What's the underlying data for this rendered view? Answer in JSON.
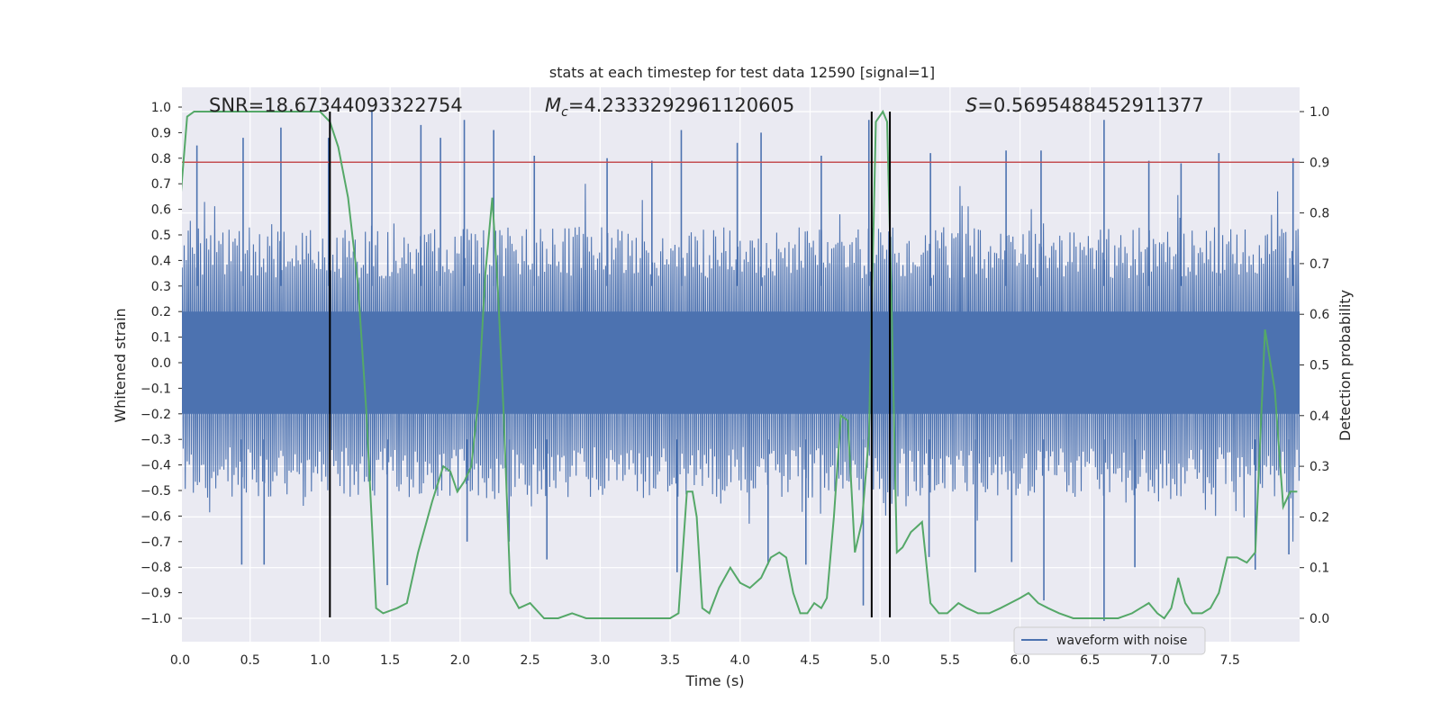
{
  "chart_data": {
    "type": "line",
    "title": "stats at each timestep for test data 12590 [signal=1]",
    "xlabel": "Time (s)",
    "ylabel": "Whitened strain",
    "y2label": "Detection probability",
    "xlim": [
      0.0,
      8.0
    ],
    "ylim": [
      -1.1,
      1.1
    ],
    "y2lim": [
      -0.05,
      1.05
    ],
    "x_ticks": [
      "0.0",
      "0.5",
      "1.0",
      "1.5",
      "2.0",
      "2.5",
      "3.0",
      "3.5",
      "4.0",
      "4.5",
      "5.0",
      "5.5",
      "6.0",
      "6.5",
      "7.0",
      "7.5"
    ],
    "y_ticks": [
      "1.0",
      "0.9",
      "0.8",
      "0.7",
      "0.6",
      "0.5",
      "0.4",
      "0.3",
      "0.2",
      "0.1",
      "0.0",
      "−0.1",
      "−0.2",
      "−0.3",
      "−0.4",
      "−0.5",
      "−0.6",
      "−0.7",
      "−0.8",
      "−0.9",
      "−1.0"
    ],
    "y2_ticks": [
      "1.0",
      "0.9",
      "0.8",
      "0.7",
      "0.6",
      "0.5",
      "0.4",
      "0.3",
      "0.2",
      "0.1",
      "0.0"
    ],
    "grid": true,
    "legend_position": "lower-right",
    "annotations": {
      "snr": "SNR=18.67344093322754",
      "mc_symbol": "M",
      "mc_sub": "c",
      "mc_value": "=4.2333292961120605",
      "s_symbol": "S",
      "s_value": "=0.5695488452911377"
    },
    "series": [
      {
        "name": "waveform with noise",
        "kind": "noise-envelope",
        "color": "#4c72b0",
        "core_amplitude": 0.2,
        "peak_times": [
          0.12,
          0.45,
          0.72,
          1.06,
          1.37,
          1.72,
          1.86,
          2.03,
          2.24,
          2.53,
          3.05,
          3.37,
          3.58,
          3.98,
          4.15,
          4.58,
          4.92,
          5.07,
          5.36,
          5.9,
          6.15,
          6.6,
          6.92,
          7.15,
          7.42,
          7.95
        ],
        "peak_values": [
          0.85,
          0.88,
          0.92,
          0.88,
          0.99,
          0.93,
          0.88,
          0.95,
          0.91,
          0.81,
          0.8,
          0.79,
          0.91,
          0.86,
          0.9,
          0.81,
          0.95,
          0.79,
          0.82,
          0.83,
          0.83,
          0.95,
          0.79,
          0.78,
          0.82,
          0.8
        ],
        "trough_times": [
          0.0,
          0.44,
          0.6,
          1.48,
          2.05,
          2.35,
          2.62,
          3.55,
          4.2,
          4.47,
          4.88,
          5.35,
          5.68,
          5.94,
          6.17,
          6.6,
          6.82,
          7.68,
          7.92
        ],
        "trough_values": [
          -0.73,
          -0.79,
          -0.79,
          -0.87,
          -0.7,
          -0.7,
          -0.77,
          -0.82,
          -0.79,
          -0.79,
          -0.95,
          -0.76,
          -0.82,
          -0.78,
          -0.93,
          -1.01,
          -0.8,
          -0.81,
          -0.75
        ]
      },
      {
        "name": "",
        "kind": "probability",
        "axis": "right",
        "color": "#55a868",
        "x": [
          0.0,
          0.05,
          0.1,
          0.3,
          0.6,
          0.9,
          1.0,
          1.07,
          1.13,
          1.2,
          1.27,
          1.33,
          1.4,
          1.45,
          1.55,
          1.62,
          1.7,
          1.8,
          1.88,
          1.93,
          1.98,
          2.03,
          2.08,
          2.13,
          2.18,
          2.23,
          2.27,
          2.31,
          2.36,
          2.42,
          2.5,
          2.6,
          2.7,
          2.8,
          2.9,
          3.0,
          3.2,
          3.4,
          3.5,
          3.56,
          3.62,
          3.66,
          3.69,
          3.73,
          3.78,
          3.85,
          3.93,
          4.0,
          4.07,
          4.15,
          4.22,
          4.28,
          4.33,
          4.38,
          4.43,
          4.48,
          4.53,
          4.58,
          4.62,
          4.67,
          4.72,
          4.77,
          4.82,
          4.87,
          4.92,
          4.97,
          5.02,
          5.05,
          5.08,
          5.12,
          5.16,
          5.22,
          5.3,
          5.36,
          5.42,
          5.48,
          5.56,
          5.62,
          5.7,
          5.78,
          5.86,
          5.93,
          6.0,
          6.06,
          6.13,
          6.2,
          6.28,
          6.38,
          6.5,
          6.6,
          6.7,
          6.8,
          6.86,
          6.92,
          6.98,
          7.03,
          7.08,
          7.13,
          7.18,
          7.23,
          7.3,
          7.36,
          7.42,
          7.48,
          7.55,
          7.62,
          7.68,
          7.75,
          7.82,
          7.88,
          7.93,
          7.98
        ],
        "y": [
          0.82,
          0.99,
          1.0,
          1.0,
          1.0,
          1.0,
          1.0,
          0.98,
          0.93,
          0.83,
          0.66,
          0.41,
          0.02,
          0.01,
          0.02,
          0.03,
          0.13,
          0.23,
          0.3,
          0.29,
          0.25,
          0.27,
          0.3,
          0.43,
          0.68,
          0.83,
          0.65,
          0.41,
          0.05,
          0.02,
          0.03,
          0.0,
          0.0,
          0.01,
          0.0,
          0.0,
          0.0,
          0.0,
          0.0,
          0.01,
          0.25,
          0.25,
          0.2,
          0.02,
          0.01,
          0.06,
          0.1,
          0.07,
          0.06,
          0.08,
          0.12,
          0.13,
          0.12,
          0.05,
          0.01,
          0.01,
          0.03,
          0.02,
          0.04,
          0.2,
          0.4,
          0.39,
          0.13,
          0.19,
          0.36,
          0.98,
          1.0,
          0.98,
          0.65,
          0.13,
          0.14,
          0.17,
          0.19,
          0.03,
          0.01,
          0.01,
          0.03,
          0.02,
          0.01,
          0.01,
          0.02,
          0.03,
          0.04,
          0.05,
          0.03,
          0.02,
          0.01,
          0.0,
          0.0,
          0.0,
          0.0,
          0.01,
          0.02,
          0.03,
          0.01,
          0.0,
          0.02,
          0.08,
          0.03,
          0.01,
          0.01,
          0.02,
          0.05,
          0.12,
          0.12,
          0.11,
          0.13,
          0.57,
          0.45,
          0.22,
          0.25,
          0.25
        ]
      }
    ],
    "threshold_line": {
      "value": 0.9,
      "axis": "right",
      "color": "#c44e52"
    },
    "vertical_markers": [
      1.07,
      4.94,
      5.07
    ],
    "marker_color": "#000000",
    "colors": {
      "plot_bg": "#eaeaf2",
      "grid": "#ffffff",
      "text": "#262626"
    }
  }
}
